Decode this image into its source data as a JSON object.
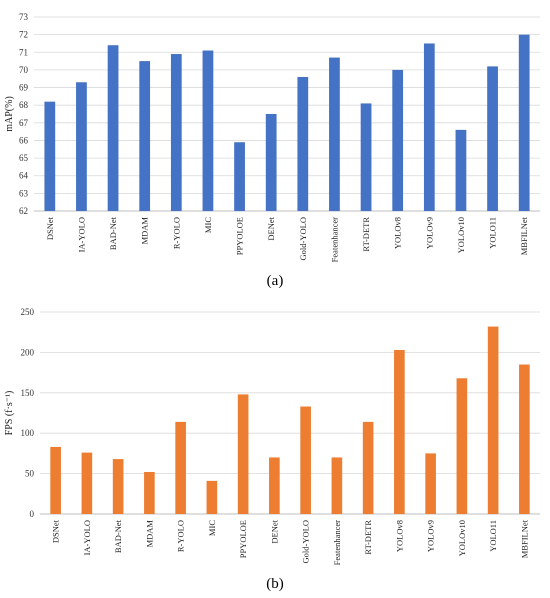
{
  "captions": {
    "a": "(a)",
    "b": "(b)"
  },
  "colors": {
    "map": "#4472c4",
    "fps": "#ed7d31"
  },
  "chart_data": [
    {
      "type": "bar",
      "title": "",
      "xlabel": "",
      "ylabel": "mAP(%)",
      "ylim": [
        62,
        73
      ],
      "yticks": [
        62,
        63,
        64,
        65,
        66,
        67,
        68,
        69,
        70,
        71,
        72,
        73
      ],
      "grid": true,
      "categories": [
        "DSNet",
        "IA-YOLO",
        "BAD-Net",
        "MDAM",
        "R-YOLO",
        "MIC",
        "PPYOLOE",
        "DENet",
        "Gold-YOLO",
        "Featenhancer",
        "RT-DETR",
        "YOLOv8",
        "YOLOv9",
        "YOLOv10",
        "YOLO11",
        "MBFILNet"
      ],
      "values": [
        68.2,
        69.3,
        71.4,
        70.5,
        70.9,
        71.1,
        65.9,
        67.5,
        69.6,
        70.7,
        68.1,
        70.0,
        71.5,
        66.6,
        70.2,
        72.0
      ]
    },
    {
      "type": "bar",
      "title": "",
      "xlabel": "",
      "ylabel": "FPS (f·s⁻¹)",
      "ylim": [
        0,
        250
      ],
      "yticks": [
        0,
        50,
        100,
        150,
        200,
        250
      ],
      "grid": true,
      "categories": [
        "DSNet",
        "IA-YOLO",
        "BAD-Net",
        "MDAM",
        "R-YOLO",
        "MIC",
        "PPYOLOE",
        "DENet",
        "Gold-YOLO",
        "Featenhancer",
        "RT-DETR",
        "YOLOv8",
        "YOLOv9",
        "YOLOv10",
        "YOLO11",
        "MBFILNet"
      ],
      "values": [
        83,
        76,
        68,
        52,
        114,
        41,
        148,
        70,
        133,
        70,
        114,
        203,
        75,
        168,
        232,
        185
      ]
    }
  ]
}
